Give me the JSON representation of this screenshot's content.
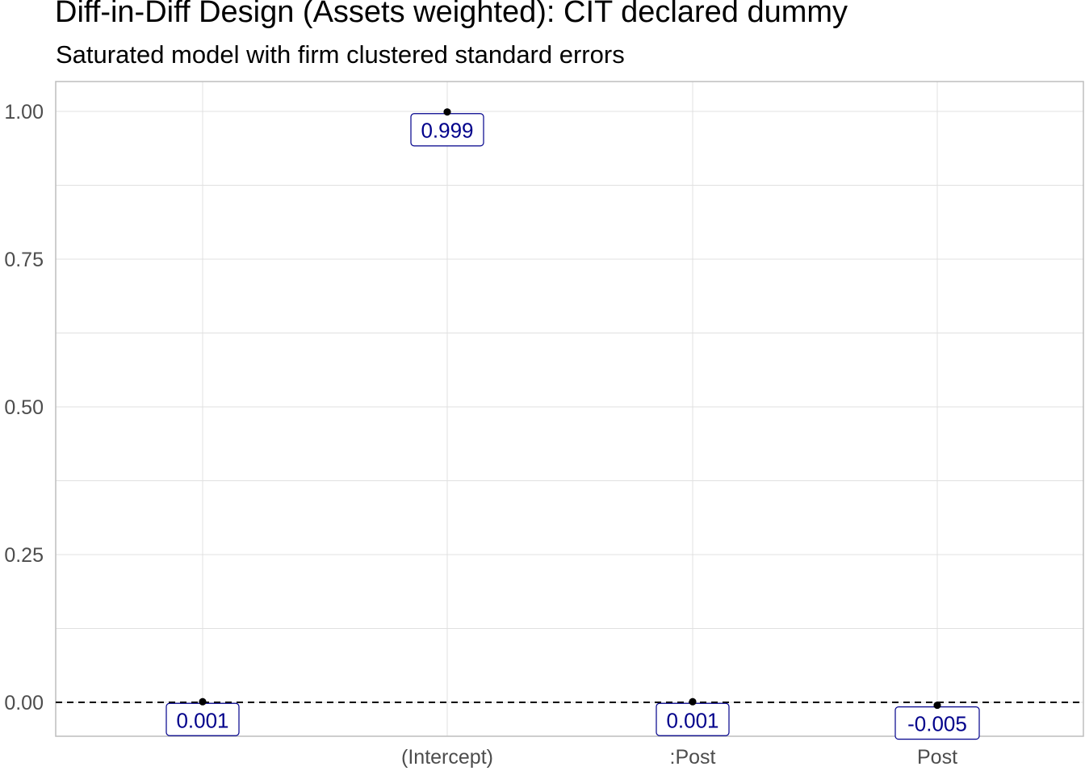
{
  "chart_data": {
    "type": "scatter",
    "title": "Diff-in-Diff Design (Assets weighted): CIT declared dummy",
    "subtitle": "Saturated model with firm clustered standard errors",
    "xlabel": "",
    "ylabel": "",
    "categories": [
      "",
      "(Intercept)",
      ":Post",
      "Post"
    ],
    "values": [
      0.001,
      0.999,
      0.001,
      -0.005
    ],
    "labels": [
      "0.001",
      "0.999",
      "0.001",
      "-0.005"
    ],
    "y_ticks": [
      0.0,
      0.25,
      0.5,
      0.75,
      1.0
    ],
    "y_tick_labels": [
      "0.00",
      "0.25",
      "0.50",
      "0.75",
      "1.00"
    ],
    "ylim": [
      -0.056,
      1.05
    ],
    "reference_line": {
      "y": 0,
      "style": "dashed"
    },
    "grid": true,
    "colors": {
      "point": "#000000",
      "label_text": "#00008b",
      "label_border": "#00008b",
      "grid": "#e0e0e0",
      "panel_border": "#bdbdbd"
    }
  }
}
